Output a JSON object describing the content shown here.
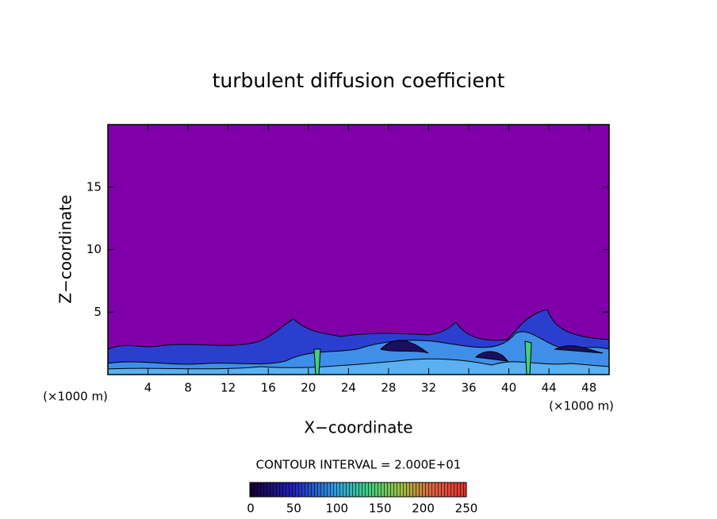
{
  "chart_data": {
    "type": "contour",
    "title": "turbulent diffusion coefficient",
    "x_label": "X−coordinate",
    "y_label": "Z−coordinate",
    "x_unit": "(×1000 m)",
    "y_unit": "(×1000 m)",
    "xlim": [
      0,
      50
    ],
    "xticks": [
      4,
      8,
      12,
      16,
      20,
      24,
      28,
      32,
      36,
      40,
      44,
      48
    ],
    "ylim": [
      0,
      20
    ],
    "yticks": [
      5,
      10,
      15
    ],
    "background_color": "#7f00a8",
    "annotation": "CONTOUR INTERVAL = 2.000E+01",
    "colorbar": {
      "lim": [
        0,
        250
      ],
      "ticks": [
        0,
        50,
        100,
        150,
        200,
        250
      ]
    }
  }
}
